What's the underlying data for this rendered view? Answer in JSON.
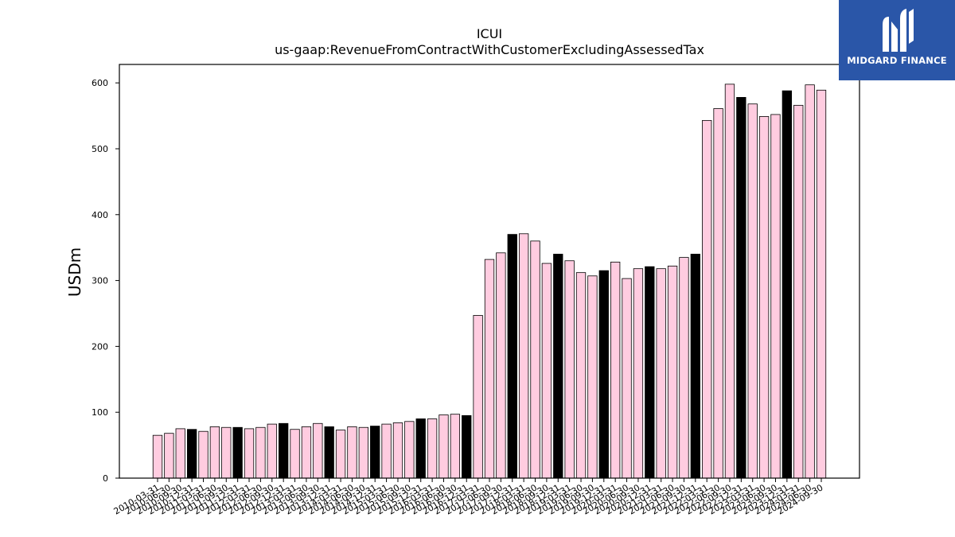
{
  "brand": {
    "name": "MIDGARD FINANCE",
    "icon": "midgard-m-logo-icon",
    "bg_color": "#2a56a8"
  },
  "chart_data": {
    "type": "bar",
    "title": "ICUI",
    "subtitle": "us-gaap:RevenueFromContractWithCustomerExcludingAssessedTax",
    "ylabel": "USDm",
    "xlabel": "",
    "ylim": [
      0,
      628
    ],
    "yticks": [
      0,
      100,
      200,
      300,
      400,
      500,
      600
    ],
    "colors": {
      "default": "#ffcce0",
      "highlight": "#000000",
      "edge": "#000000"
    },
    "grid": false,
    "legend": "none",
    "categories": [
      "2010-03-31",
      "2010-06-30",
      "2010-09-30",
      "2010-12-31",
      "2011-03-31",
      "2011-06-30",
      "2011-09-30",
      "2011-12-31",
      "2012-03-31",
      "2012-06-30",
      "2012-09-30",
      "2012-12-31",
      "2013-03-31",
      "2013-06-30",
      "2013-09-30",
      "2013-12-31",
      "2014-03-31",
      "2014-06-30",
      "2014-09-30",
      "2014-12-31",
      "2015-03-31",
      "2015-06-30",
      "2015-09-30",
      "2015-12-31",
      "2016-03-31",
      "2016-06-30",
      "2016-09-30",
      "2016-12-31",
      "2017-03-31",
      "2017-06-30",
      "2017-09-30",
      "2017-12-31",
      "2018-03-31",
      "2018-06-30",
      "2018-09-30",
      "2018-12-31",
      "2019-03-31",
      "2019-06-30",
      "2019-09-30",
      "2019-12-31",
      "2020-03-31",
      "2020-06-30",
      "2020-09-30",
      "2020-12-31",
      "2021-03-31",
      "2021-06-30",
      "2021-09-30",
      "2021-12-31",
      "2022-03-31",
      "2022-06-30",
      "2022-09-30",
      "2022-12-31",
      "2023-03-31",
      "2023-06-30",
      "2023-09-30",
      "2023-12-31",
      "2024-03-31",
      "2024-06-30",
      "2024-09-30"
    ],
    "values": [
      65,
      68,
      75,
      74,
      71,
      78,
      77,
      77,
      75,
      77,
      82,
      83,
      74,
      78,
      83,
      78,
      73,
      78,
      77,
      79,
      82,
      84,
      86,
      90,
      90,
      96,
      97,
      95,
      247,
      332,
      342,
      370,
      371,
      360,
      326,
      340,
      330,
      312,
      307,
      315,
      328,
      303,
      318,
      321,
      318,
      322,
      335,
      340,
      543,
      561,
      598,
      578,
      568,
      549,
      552,
      588,
      566,
      597,
      589
    ],
    "highlight": [
      false,
      false,
      false,
      true,
      false,
      false,
      false,
      true,
      false,
      false,
      false,
      true,
      false,
      false,
      false,
      true,
      false,
      false,
      false,
      true,
      false,
      false,
      false,
      true,
      false,
      false,
      false,
      true,
      false,
      false,
      false,
      true,
      false,
      false,
      false,
      true,
      false,
      false,
      false,
      true,
      false,
      false,
      false,
      true,
      false,
      false,
      false,
      true,
      false,
      false,
      false,
      true,
      false,
      false,
      false,
      true,
      false,
      false,
      false
    ]
  }
}
